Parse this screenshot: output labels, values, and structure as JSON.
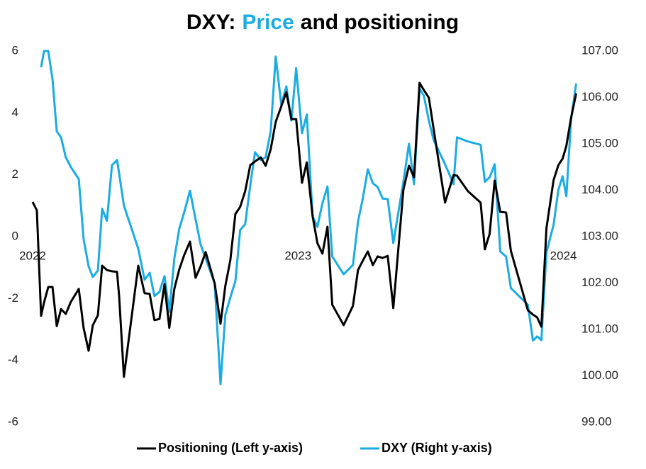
{
  "chart_data": {
    "type": "line",
    "title": [
      {
        "text": "DXY:",
        "color": "#000000"
      },
      {
        "text": "Price",
        "color": "#1aace2"
      },
      {
        "text": "and positioning",
        "color": "#000000"
      }
    ],
    "x": [
      2022.0,
      2022.016,
      2022.032,
      2022.043,
      2022.059,
      2022.075,
      2022.091,
      2022.107,
      2022.125,
      2022.144,
      2022.174,
      2022.192,
      2022.211,
      2022.227,
      2022.246,
      2022.262,
      2022.28,
      2022.299,
      2022.318,
      2022.326,
      2022.344,
      2022.398,
      2022.422,
      2022.441,
      2022.459,
      2022.478,
      2022.497,
      2022.515,
      2022.534,
      2022.553,
      2022.571,
      2022.593,
      2022.614,
      2022.633,
      2022.652,
      2022.686,
      2022.708,
      2022.726,
      2022.745,
      2022.764,
      2022.782,
      2022.801,
      2022.82,
      2022.838,
      2022.86,
      2022.878,
      2022.897,
      2022.916,
      2022.937,
      2022.956,
      2022.975,
      2022.993,
      2023.015,
      2023.033,
      2023.055,
      2023.073,
      2023.092,
      2023.111,
      2023.129,
      2023.172,
      2023.207,
      2023.226,
      2023.244,
      2023.263,
      2023.282,
      2023.3,
      2023.319,
      2023.338,
      2023.359,
      2023.397,
      2023.418,
      2023.437,
      2023.458,
      2023.474,
      2023.493,
      2023.511,
      2023.554,
      2023.586,
      2023.599,
      2023.64,
      2023.688,
      2023.704,
      2023.722,
      2023.741,
      2023.762,
      2023.784,
      2023.802,
      2023.866,
      2023.885,
      2023.901,
      2023.917,
      2023.936,
      2023.963,
      2023.981,
      2023.997,
      2024.011,
      2024.029,
      2024.048
    ],
    "series": [
      {
        "name": "Positioning (Left y-axis)",
        "color": "#000000",
        "axis": "y",
        "values": [
          1.12,
          0.85,
          -2.56,
          -2.13,
          -1.63,
          -1.63,
          -2.89,
          -2.34,
          -2.5,
          -2.11,
          -1.69,
          -2.95,
          -3.69,
          -2.86,
          -2.54,
          -0.94,
          -1.08,
          -1.12,
          -1.14,
          -1.92,
          -4.53,
          -0.94,
          -1.83,
          -1.85,
          -2.7,
          -2.66,
          -1.53,
          -2.95,
          -1.69,
          -1.05,
          -0.6,
          -0.16,
          -1.33,
          -0.96,
          -0.5,
          -1.51,
          -2.82,
          -1.6,
          -0.76,
          0.73,
          0.96,
          1.47,
          2.31,
          2.43,
          2.56,
          2.29,
          2.82,
          3.71,
          4.21,
          4.67,
          3.8,
          3.8,
          1.74,
          2.4,
          0.66,
          -0.21,
          -0.55,
          0.32,
          -2.2,
          -2.86,
          -2.24,
          -1.08,
          -0.78,
          -0.48,
          -0.92,
          -0.64,
          -0.69,
          -0.62,
          -2.31,
          1.51,
          2.29,
          1.92,
          4.97,
          4.74,
          4.49,
          3.48,
          1.1,
          1.99,
          1.97,
          1.47,
          1.1,
          -0.41,
          0.09,
          1.81,
          0.8,
          0.78,
          -0.46,
          -2.38,
          -2.52,
          -2.61,
          -2.91,
          0.27,
          1.83,
          2.31,
          2.52,
          2.93,
          3.85,
          4.63
        ]
      },
      {
        "name": "DXY (Right y-axis)",
        "color": "#1aace2",
        "axis": "y2",
        "values": [
          null,
          null,
          106.65,
          107.0,
          107.0,
          106.39,
          105.27,
          105.14,
          104.71,
          104.5,
          104.24,
          102.95,
          102.36,
          102.13,
          102.27,
          103.6,
          103.34,
          104.54,
          104.65,
          104.36,
          103.67,
          102.74,
          102.07,
          102.22,
          101.72,
          101.81,
          102.15,
          101.38,
          102.53,
          103.18,
          103.52,
          103.99,
          103.37,
          102.83,
          102.53,
          101.99,
          99.82,
          101.31,
          101.69,
          102.04,
          103.14,
          103.27,
          104.1,
          104.82,
          104.65,
          104.71,
          105.27,
          106.88,
          105.84,
          106.24,
          105.5,
          106.63,
          105.23,
          105.63,
          103.44,
          103.21,
          103.72,
          104.08,
          102.57,
          102.19,
          102.39,
          103.32,
          103.82,
          104.45,
          104.15,
          104.07,
          103.82,
          103.81,
          102.86,
          104.18,
          105.0,
          104.13,
          106.19,
          106.04,
          105.5,
          105.08,
          104.56,
          104.13,
          105.14,
          105.05,
          104.98,
          104.18,
          104.28,
          104.56,
          102.68,
          102.57,
          101.89,
          101.53,
          100.76,
          100.85,
          100.77,
          102.66,
          103.26,
          104.01,
          104.3,
          103.87,
          105.53,
          106.3
        ]
      }
    ],
    "xlim": [
      2021.98,
      2024.06
    ],
    "xticks": [
      2022,
      2023,
      2024
    ],
    "ylim": [
      -6,
      6
    ],
    "yticks": [
      -6,
      -4,
      -2,
      0,
      2,
      4,
      6
    ],
    "y2lim": [
      99,
      107
    ],
    "y2ticks": [
      {
        "value": 99,
        "label": "99.00"
      },
      {
        "value": 100,
        "label": "100.00"
      },
      {
        "value": 101,
        "label": "101.00"
      },
      {
        "value": 102,
        "label": "102.00"
      },
      {
        "value": 103,
        "label": "103.00"
      },
      {
        "value": 104,
        "label": "104.00"
      },
      {
        "value": 105,
        "label": "105.00"
      },
      {
        "value": 106,
        "label": "106.00"
      },
      {
        "value": 107,
        "label": "107.00"
      }
    ],
    "grid": false,
    "legend": "bottom"
  }
}
